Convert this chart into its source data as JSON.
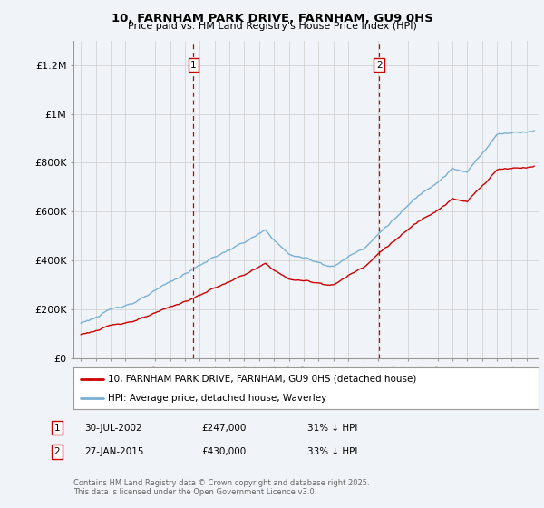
{
  "title": "10, FARNHAM PARK DRIVE, FARNHAM, GU9 0HS",
  "subtitle": "Price paid vs. HM Land Registry's House Price Index (HPI)",
  "property_label": "10, FARNHAM PARK DRIVE, FARNHAM, GU9 0HS (detached house)",
  "hpi_label": "HPI: Average price, detached house, Waverley",
  "footnote": "Contains HM Land Registry data © Crown copyright and database right 2025.\nThis data is licensed under the Open Government Licence v3.0.",
  "sale1_date": "30-JUL-2002",
  "sale1_price": "£247,000",
  "sale1_note": "31% ↓ HPI",
  "sale2_date": "27-JAN-2015",
  "sale2_price": "£430,000",
  "sale2_note": "33% ↓ HPI",
  "sale1_x": 2002.58,
  "sale2_x": 2015.07,
  "red_color": "#cc0000",
  "blue_color": "#7ab0d4",
  "vline_color": "#cc0000",
  "background_color": "#f0f4f8",
  "grid_color": "#cccccc",
  "ylim": [
    0,
    1300000
  ],
  "xlim": [
    1994.5,
    2025.8
  ],
  "yticks": [
    0,
    200000,
    400000,
    600000,
    800000,
    1000000,
    1200000
  ],
  "ytick_labels": [
    "£0",
    "£200K",
    "£400K",
    "£600K",
    "£800K",
    "£1M",
    "£1.2M"
  ]
}
